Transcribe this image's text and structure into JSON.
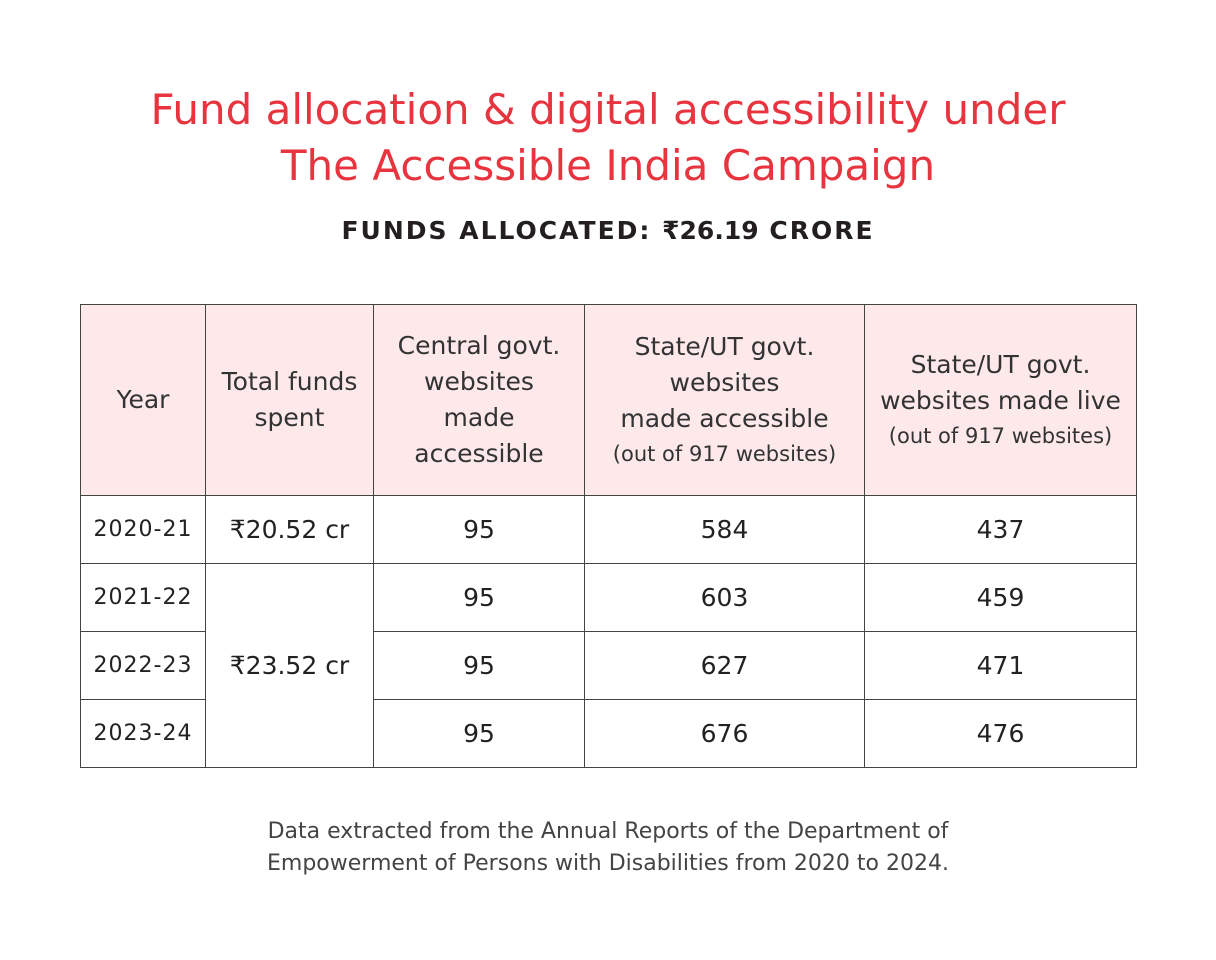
{
  "colors": {
    "title": "#e8343f",
    "header_bg": "#fde8ea",
    "border": "#444444"
  },
  "title_line1": "Fund allocation & digital accessibility under",
  "title_line2": "The Accessible India Campaign",
  "subtitle_label": "FUNDS ALLOCATED:",
  "subtitle_amount": "₹26.19",
  "subtitle_unit": "CRORE",
  "source_line1": "Data extracted from the Annual Reports of the Department of",
  "source_line2": "Empowerment of Persons with Disabilities from 2020 to 2024.",
  "chart_data": {
    "type": "table",
    "columns": [
      {
        "lines": [
          "Year"
        ],
        "note": ""
      },
      {
        "lines": [
          "Total funds",
          "spent"
        ],
        "note": ""
      },
      {
        "lines": [
          "Central govt.",
          "websites",
          "made",
          "accessible"
        ],
        "note": ""
      },
      {
        "lines": [
          "State/UT govt.",
          "websites",
          "made accessible"
        ],
        "note": "(out of 917 websites)"
      },
      {
        "lines": [
          "State/UT govt.",
          "websites made live"
        ],
        "note": "(out of 917 websites)"
      }
    ],
    "funds": [
      {
        "value": "₹20.52 cr",
        "years": [
          "2020-21"
        ]
      },
      {
        "value": "₹23.52 cr",
        "years": [
          "2021-22",
          "2022-23",
          "2023-24"
        ]
      }
    ],
    "rows": [
      {
        "year": "2020-21",
        "central": 95,
        "state_accessible": 584,
        "state_live": 437
      },
      {
        "year": "2021-22",
        "central": 95,
        "state_accessible": 603,
        "state_live": 459
      },
      {
        "year": "2022-23",
        "central": 95,
        "state_accessible": 627,
        "state_live": 471
      },
      {
        "year": "2023-24",
        "central": 95,
        "state_accessible": 676,
        "state_live": 476
      }
    ]
  }
}
